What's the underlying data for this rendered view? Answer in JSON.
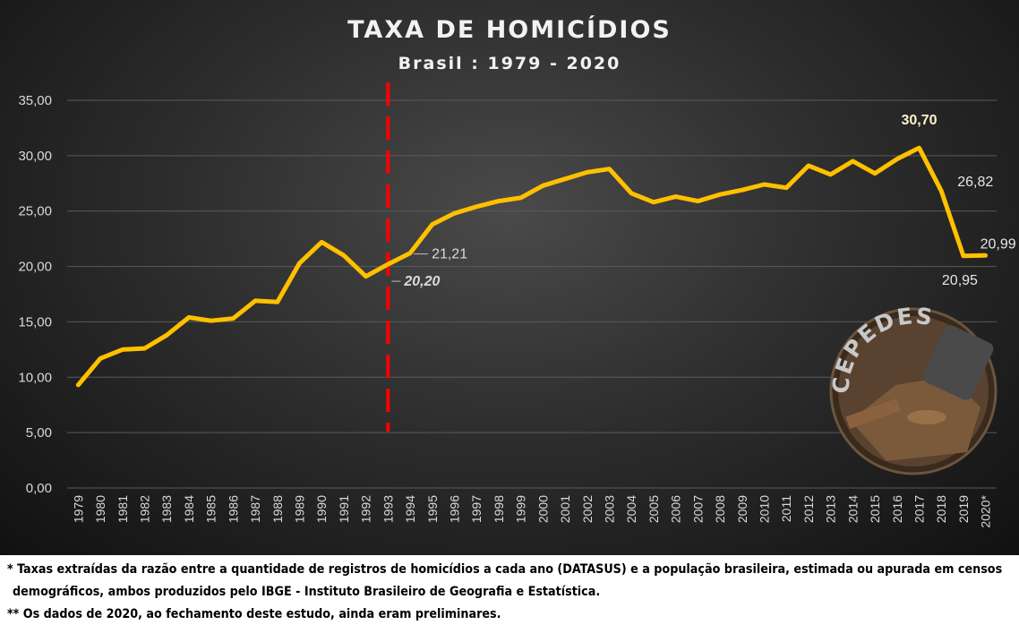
{
  "chart_data": {
    "type": "line",
    "title": "TAXA DE HOMICÍDIOS",
    "subtitle": "Brasil : 1979 - 2020",
    "xlabel": "",
    "ylabel": "",
    "ylim": [
      0,
      35
    ],
    "y_ticks": [
      "0,00",
      "5,00",
      "10,00",
      "15,00",
      "20,00",
      "25,00",
      "30,00",
      "35,00"
    ],
    "grid": true,
    "categories": [
      "1979",
      "1980",
      "1981",
      "1982",
      "1983",
      "1984",
      "1985",
      "1986",
      "1987",
      "1988",
      "1989",
      "1990",
      "1991",
      "1992",
      "1993",
      "1994",
      "1995",
      "1996",
      "1997",
      "1998",
      "1999",
      "2000",
      "2001",
      "2002",
      "2003",
      "2004",
      "2005",
      "2006",
      "2007",
      "2008",
      "2009",
      "2010",
      "2011",
      "2012",
      "2013",
      "2014",
      "2015",
      "2016",
      "2017",
      "2018",
      "2019",
      "2020*"
    ],
    "series": [
      {
        "color": "#FFC000",
        "values": [
          9.3,
          11.7,
          12.5,
          12.6,
          13.8,
          15.4,
          15.1,
          15.3,
          16.9,
          16.8,
          20.3,
          22.2,
          21.0,
          19.1,
          20.2,
          21.21,
          23.8,
          24.8,
          25.4,
          25.9,
          26.2,
          27.3,
          27.9,
          28.5,
          28.8,
          26.6,
          25.8,
          26.3,
          25.9,
          26.5,
          26.9,
          27.4,
          27.1,
          29.1,
          28.3,
          29.5,
          28.4,
          29.7,
          30.7,
          26.82,
          20.95,
          20.99
        ]
      }
    ],
    "marker_line": {
      "category": "1993",
      "color": "#FF0000",
      "style": "dashed"
    },
    "annotations": [
      {
        "category": "1993",
        "text": "20,20",
        "style": "bold-italic"
      },
      {
        "category": "1994",
        "text": "21,21"
      },
      {
        "category": "2017",
        "text": "30,70",
        "style": "bold"
      },
      {
        "category": "2018",
        "text": "26,82"
      },
      {
        "category": "2019",
        "text": "20,95"
      },
      {
        "category": "2020*",
        "text": "20,99"
      }
    ]
  },
  "watermark": {
    "text": "CEPEDES"
  },
  "footnotes": {
    "line1": "* Taxas extraídas da razão entre a quantidade de registros de homicídios a cada ano (DATASUS) e a população brasileira, estimada ou apurada em censos",
    "line2": "demográficos, ambos produzidos pelo IBGE - Instituto Brasileiro de Geografia e Estatística.",
    "line3": "** Os dados de 2020, ao fechamento deste estudo, ainda eram preliminares."
  },
  "colors": {
    "line": "#FFC000",
    "marker_line": "#FF0000",
    "text": "#D9D9D9",
    "grid": "#5A5A5A"
  }
}
